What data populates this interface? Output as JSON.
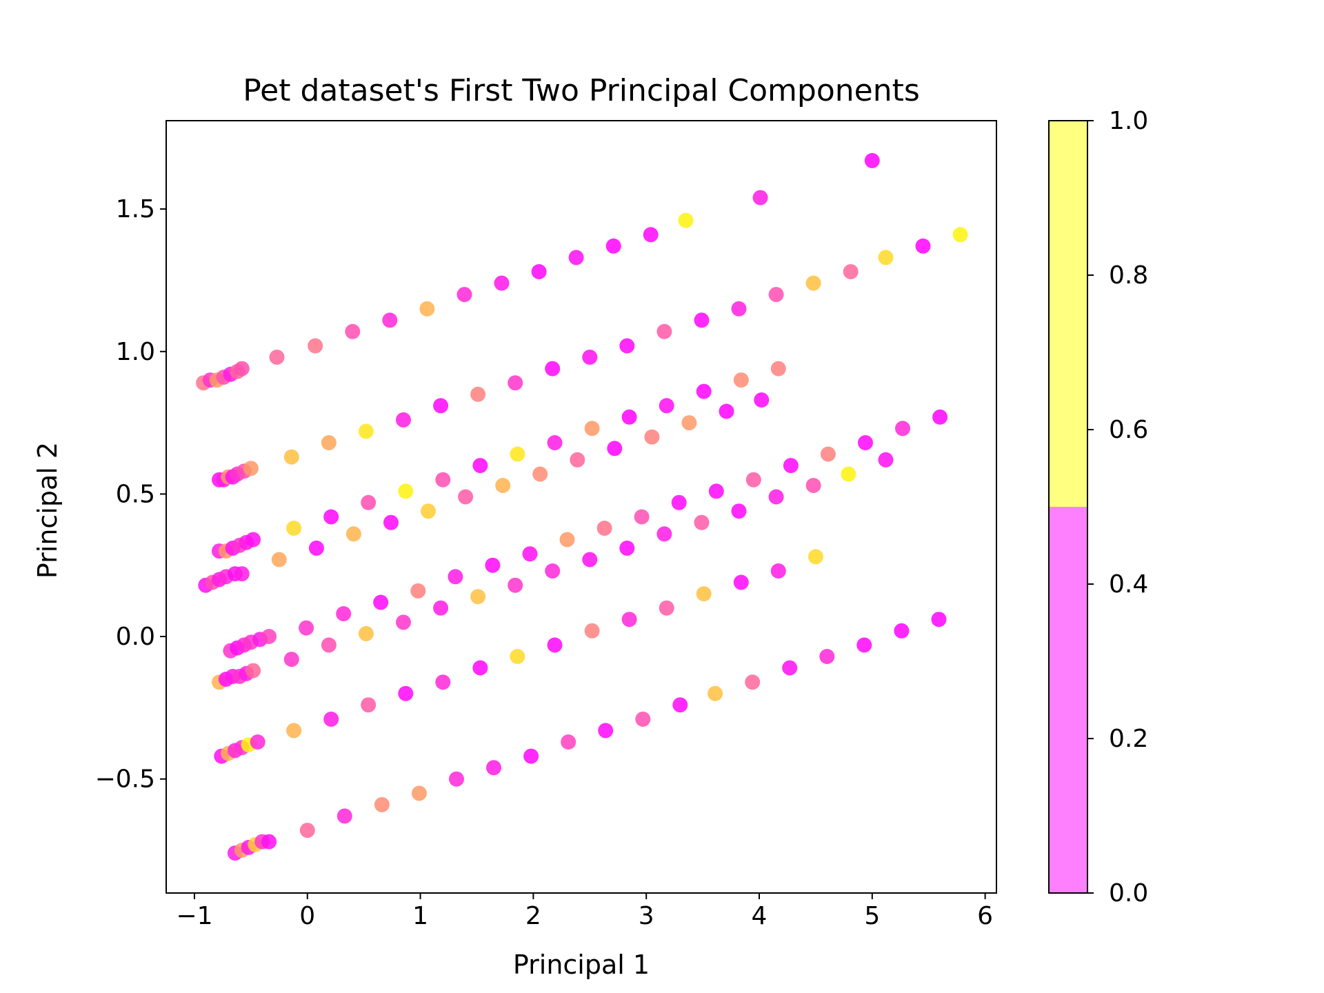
{
  "chart_data": {
    "type": "scatter",
    "title": "Pet dataset's First Two Principal Components",
    "xlabel": "Principal 1",
    "ylabel": "Principal 2",
    "xlim": [
      -1.25,
      6.1
    ],
    "ylim": [
      -0.9,
      1.81
    ],
    "xticks": [
      -1,
      0,
      1,
      2,
      3,
      4,
      5,
      6
    ],
    "xtick_labels": [
      "−1",
      "0",
      "1",
      "2",
      "3",
      "4",
      "5",
      "6"
    ],
    "yticks": [
      -0.5,
      0.0,
      0.5,
      1.0,
      1.5
    ],
    "ytick_labels": [
      "−0.5",
      "0.0",
      "0.5",
      "1.0",
      "1.5"
    ],
    "grid": false,
    "colormap": "spring (2-level)",
    "colorbar": {
      "range": [
        0.0,
        1.0
      ],
      "ticks": [
        0.0,
        0.2,
        0.4,
        0.6,
        0.8,
        1.0
      ],
      "tick_labels": [
        "0.0",
        "0.2",
        "0.4",
        "0.6",
        "0.8",
        "1.0"
      ],
      "segments": [
        {
          "from": 0.0,
          "to": 0.5,
          "color": "#ff80ff"
        },
        {
          "from": 0.5,
          "to": 1.0,
          "color": "#ffff80"
        }
      ]
    },
    "points": [
      {
        "x": -0.92,
        "y": 0.89,
        "c": 0.45
      },
      {
        "x": -0.86,
        "y": 0.9,
        "c": 0.2
      },
      {
        "x": -0.8,
        "y": 0.9,
        "c": 0.6
      },
      {
        "x": -0.74,
        "y": 0.91,
        "c": 0.3
      },
      {
        "x": -0.68,
        "y": 0.92,
        "c": 0.1
      },
      {
        "x": -0.62,
        "y": 0.93,
        "c": 0.4
      },
      {
        "x": -0.58,
        "y": 0.94,
        "c": 0.3
      },
      {
        "x": -0.27,
        "y": 0.98,
        "c": 0.4
      },
      {
        "x": 0.07,
        "y": 1.02,
        "c": 0.45
      },
      {
        "x": 0.4,
        "y": 1.07,
        "c": 0.3
      },
      {
        "x": 0.73,
        "y": 1.11,
        "c": 0.15
      },
      {
        "x": 1.06,
        "y": 1.15,
        "c": 0.7
      },
      {
        "x": 1.39,
        "y": 1.2,
        "c": 0.15
      },
      {
        "x": 1.72,
        "y": 1.24,
        "c": 0.08
      },
      {
        "x": 2.05,
        "y": 1.28,
        "c": 0.02
      },
      {
        "x": 2.38,
        "y": 1.33,
        "c": 0.05
      },
      {
        "x": 2.71,
        "y": 1.37,
        "c": 0.0
      },
      {
        "x": 3.04,
        "y": 1.41,
        "c": 0.02
      },
      {
        "x": 3.35,
        "y": 1.46,
        "c": 0.95
      },
      {
        "x": 4.01,
        "y": 1.54,
        "c": 0.1
      },
      {
        "x": 5.0,
        "y": 1.67,
        "c": 0.0
      },
      {
        "x": -0.78,
        "y": 0.55,
        "c": 0.05
      },
      {
        "x": -0.74,
        "y": 0.55,
        "c": 0.1
      },
      {
        "x": -0.7,
        "y": 0.56,
        "c": 0.6
      },
      {
        "x": -0.66,
        "y": 0.56,
        "c": 0.05
      },
      {
        "x": -0.62,
        "y": 0.57,
        "c": 0.2
      },
      {
        "x": -0.56,
        "y": 0.58,
        "c": 0.3
      },
      {
        "x": -0.5,
        "y": 0.59,
        "c": 0.6
      },
      {
        "x": -0.14,
        "y": 0.63,
        "c": 0.75
      },
      {
        "x": 0.19,
        "y": 0.68,
        "c": 0.65
      },
      {
        "x": 0.52,
        "y": 0.72,
        "c": 0.9
      },
      {
        "x": 0.85,
        "y": 0.76,
        "c": 0.1
      },
      {
        "x": 1.18,
        "y": 0.81,
        "c": 0.02
      },
      {
        "x": 1.51,
        "y": 0.85,
        "c": 0.5
      },
      {
        "x": 1.84,
        "y": 0.89,
        "c": 0.2
      },
      {
        "x": 2.17,
        "y": 0.94,
        "c": 0.02
      },
      {
        "x": 2.5,
        "y": 0.98,
        "c": 0.05
      },
      {
        "x": 2.83,
        "y": 1.02,
        "c": 0.02
      },
      {
        "x": 3.16,
        "y": 1.07,
        "c": 0.35
      },
      {
        "x": 3.49,
        "y": 1.11,
        "c": 0.02
      },
      {
        "x": 3.82,
        "y": 1.15,
        "c": 0.12
      },
      {
        "x": 4.15,
        "y": 1.2,
        "c": 0.3
      },
      {
        "x": 4.48,
        "y": 1.24,
        "c": 0.75
      },
      {
        "x": 4.81,
        "y": 1.28,
        "c": 0.4
      },
      {
        "x": 5.12,
        "y": 1.33,
        "c": 0.85
      },
      {
        "x": 5.45,
        "y": 1.37,
        "c": 0.0
      },
      {
        "x": 5.78,
        "y": 1.41,
        "c": 0.95
      },
      {
        "x": -0.78,
        "y": 0.3,
        "c": 0.1
      },
      {
        "x": -0.72,
        "y": 0.3,
        "c": 0.6
      },
      {
        "x": -0.66,
        "y": 0.31,
        "c": 0.05
      },
      {
        "x": -0.6,
        "y": 0.32,
        "c": 0.2
      },
      {
        "x": -0.54,
        "y": 0.33,
        "c": 0.1
      },
      {
        "x": -0.48,
        "y": 0.34,
        "c": 0.05
      },
      {
        "x": -0.12,
        "y": 0.38,
        "c": 0.85
      },
      {
        "x": 0.21,
        "y": 0.42,
        "c": 0.02
      },
      {
        "x": 0.54,
        "y": 0.47,
        "c": 0.3
      },
      {
        "x": 0.87,
        "y": 0.51,
        "c": 0.95
      },
      {
        "x": 1.2,
        "y": 0.55,
        "c": 0.3
      },
      {
        "x": 1.53,
        "y": 0.6,
        "c": 0.02
      },
      {
        "x": 1.86,
        "y": 0.64,
        "c": 0.9
      },
      {
        "x": 2.19,
        "y": 0.68,
        "c": 0.1
      },
      {
        "x": 2.52,
        "y": 0.73,
        "c": 0.6
      },
      {
        "x": 2.85,
        "y": 0.77,
        "c": 0.0
      },
      {
        "x": 3.18,
        "y": 0.81,
        "c": 0.05
      },
      {
        "x": 3.51,
        "y": 0.86,
        "c": 0.0
      },
      {
        "x": 3.84,
        "y": 0.9,
        "c": 0.55
      },
      {
        "x": 4.17,
        "y": 0.94,
        "c": 0.5
      },
      {
        "x": -0.9,
        "y": 0.18,
        "c": 0.05
      },
      {
        "x": -0.84,
        "y": 0.19,
        "c": 0.3
      },
      {
        "x": -0.78,
        "y": 0.2,
        "c": 0.1
      },
      {
        "x": -0.72,
        "y": 0.21,
        "c": 0.15
      },
      {
        "x": -0.64,
        "y": 0.22,
        "c": 0.05
      },
      {
        "x": -0.58,
        "y": 0.22,
        "c": 0.1
      },
      {
        "x": -0.25,
        "y": 0.27,
        "c": 0.65
      },
      {
        "x": 0.08,
        "y": 0.31,
        "c": 0.02
      },
      {
        "x": 0.41,
        "y": 0.36,
        "c": 0.7
      },
      {
        "x": 0.74,
        "y": 0.4,
        "c": 0.02
      },
      {
        "x": 1.07,
        "y": 0.44,
        "c": 0.8
      },
      {
        "x": 1.4,
        "y": 0.49,
        "c": 0.35
      },
      {
        "x": 1.73,
        "y": 0.53,
        "c": 0.7
      },
      {
        "x": 2.06,
        "y": 0.57,
        "c": 0.55
      },
      {
        "x": 2.39,
        "y": 0.62,
        "c": 0.4
      },
      {
        "x": 2.72,
        "y": 0.66,
        "c": 0.0
      },
      {
        "x": 3.05,
        "y": 0.7,
        "c": 0.5
      },
      {
        "x": 3.38,
        "y": 0.75,
        "c": 0.6
      },
      {
        "x": 3.71,
        "y": 0.79,
        "c": 0.0
      },
      {
        "x": 4.02,
        "y": 0.83,
        "c": 0.02
      },
      {
        "x": -0.68,
        "y": -0.05,
        "c": 0.2
      },
      {
        "x": -0.62,
        "y": -0.04,
        "c": 0.05
      },
      {
        "x": -0.56,
        "y": -0.03,
        "c": 0.15
      },
      {
        "x": -0.5,
        "y": -0.02,
        "c": 0.2
      },
      {
        "x": -0.42,
        "y": -0.01,
        "c": 0.1
      },
      {
        "x": -0.34,
        "y": 0.0,
        "c": 0.25
      },
      {
        "x": -0.01,
        "y": 0.03,
        "c": 0.2
      },
      {
        "x": 0.32,
        "y": 0.08,
        "c": 0.15
      },
      {
        "x": 0.65,
        "y": 0.12,
        "c": 0.02
      },
      {
        "x": 0.98,
        "y": 0.16,
        "c": 0.5
      },
      {
        "x": 1.31,
        "y": 0.21,
        "c": 0.1
      },
      {
        "x": 1.64,
        "y": 0.25,
        "c": 0.02
      },
      {
        "x": 1.97,
        "y": 0.29,
        "c": 0.05
      },
      {
        "x": 2.3,
        "y": 0.34,
        "c": 0.6
      },
      {
        "x": 2.63,
        "y": 0.38,
        "c": 0.45
      },
      {
        "x": 2.96,
        "y": 0.42,
        "c": 0.3
      },
      {
        "x": 3.29,
        "y": 0.47,
        "c": 0.02
      },
      {
        "x": 3.62,
        "y": 0.51,
        "c": 0.02
      },
      {
        "x": 3.95,
        "y": 0.55,
        "c": 0.35
      },
      {
        "x": 4.28,
        "y": 0.6,
        "c": 0.02
      },
      {
        "x": 4.61,
        "y": 0.64,
        "c": 0.5
      },
      {
        "x": 4.94,
        "y": 0.68,
        "c": 0.02
      },
      {
        "x": 5.27,
        "y": 0.73,
        "c": 0.15
      },
      {
        "x": 5.6,
        "y": 0.77,
        "c": 0.0
      },
      {
        "x": -0.78,
        "y": -0.16,
        "c": 0.7
      },
      {
        "x": -0.72,
        "y": -0.15,
        "c": 0.05
      },
      {
        "x": -0.66,
        "y": -0.14,
        "c": 0.1
      },
      {
        "x": -0.6,
        "y": -0.14,
        "c": 0.2
      },
      {
        "x": -0.54,
        "y": -0.13,
        "c": 0.1
      },
      {
        "x": -0.48,
        "y": -0.12,
        "c": 0.4
      },
      {
        "x": -0.14,
        "y": -0.08,
        "c": 0.2
      },
      {
        "x": 0.19,
        "y": -0.03,
        "c": 0.3
      },
      {
        "x": 0.52,
        "y": 0.01,
        "c": 0.75
      },
      {
        "x": 0.85,
        "y": 0.05,
        "c": 0.2
      },
      {
        "x": 1.18,
        "y": 0.1,
        "c": 0.1
      },
      {
        "x": 1.51,
        "y": 0.14,
        "c": 0.75
      },
      {
        "x": 1.84,
        "y": 0.18,
        "c": 0.2
      },
      {
        "x": 2.17,
        "y": 0.23,
        "c": 0.15
      },
      {
        "x": 2.5,
        "y": 0.27,
        "c": 0.05
      },
      {
        "x": 2.83,
        "y": 0.31,
        "c": 0.02
      },
      {
        "x": 3.16,
        "y": 0.36,
        "c": 0.1
      },
      {
        "x": 3.49,
        "y": 0.4,
        "c": 0.35
      },
      {
        "x": 3.82,
        "y": 0.44,
        "c": 0.02
      },
      {
        "x": 4.15,
        "y": 0.49,
        "c": 0.1
      },
      {
        "x": 4.48,
        "y": 0.53,
        "c": 0.3
      },
      {
        "x": 4.79,
        "y": 0.57,
        "c": 0.95
      },
      {
        "x": 5.12,
        "y": 0.62,
        "c": 0.05
      },
      {
        "x": -0.76,
        "y": -0.42,
        "c": 0.05
      },
      {
        "x": -0.7,
        "y": -0.41,
        "c": 0.7
      },
      {
        "x": -0.64,
        "y": -0.4,
        "c": 0.15
      },
      {
        "x": -0.58,
        "y": -0.39,
        "c": 0.2
      },
      {
        "x": -0.52,
        "y": -0.38,
        "c": 0.95
      },
      {
        "x": -0.44,
        "y": -0.37,
        "c": 0.15
      },
      {
        "x": -0.12,
        "y": -0.33,
        "c": 0.7
      },
      {
        "x": 0.21,
        "y": -0.29,
        "c": 0.1
      },
      {
        "x": 0.54,
        "y": -0.24,
        "c": 0.35
      },
      {
        "x": 0.87,
        "y": -0.2,
        "c": 0.02
      },
      {
        "x": 1.2,
        "y": -0.16,
        "c": 0.15
      },
      {
        "x": 1.53,
        "y": -0.11,
        "c": 0.02
      },
      {
        "x": 1.86,
        "y": -0.07,
        "c": 0.85
      },
      {
        "x": 2.19,
        "y": -0.03,
        "c": 0.02
      },
      {
        "x": 2.52,
        "y": 0.02,
        "c": 0.5
      },
      {
        "x": 2.85,
        "y": 0.06,
        "c": 0.15
      },
      {
        "x": 3.18,
        "y": 0.1,
        "c": 0.35
      },
      {
        "x": 3.51,
        "y": 0.15,
        "c": 0.75
      },
      {
        "x": 3.84,
        "y": 0.19,
        "c": 0.02
      },
      {
        "x": 4.17,
        "y": 0.23,
        "c": 0.1
      },
      {
        "x": 4.5,
        "y": 0.28,
        "c": 0.85
      },
      {
        "x": -0.64,
        "y": -0.76,
        "c": 0.1
      },
      {
        "x": -0.58,
        "y": -0.75,
        "c": 0.6
      },
      {
        "x": -0.52,
        "y": -0.74,
        "c": 0.1
      },
      {
        "x": -0.46,
        "y": -0.73,
        "c": 0.8
      },
      {
        "x": -0.4,
        "y": -0.72,
        "c": 0.2
      },
      {
        "x": -0.34,
        "y": -0.72,
        "c": 0.05
      },
      {
        "x": 0.0,
        "y": -0.68,
        "c": 0.4
      },
      {
        "x": 0.33,
        "y": -0.63,
        "c": 0.15
      },
      {
        "x": 0.66,
        "y": -0.59,
        "c": 0.55
      },
      {
        "x": 0.99,
        "y": -0.55,
        "c": 0.6
      },
      {
        "x": 1.32,
        "y": -0.5,
        "c": 0.15
      },
      {
        "x": 1.65,
        "y": -0.46,
        "c": 0.1
      },
      {
        "x": 1.98,
        "y": -0.42,
        "c": 0.02
      },
      {
        "x": 2.31,
        "y": -0.37,
        "c": 0.25
      },
      {
        "x": 2.64,
        "y": -0.33,
        "c": 0.02
      },
      {
        "x": 2.97,
        "y": -0.29,
        "c": 0.3
      },
      {
        "x": 3.3,
        "y": -0.24,
        "c": 0.02
      },
      {
        "x": 3.61,
        "y": -0.2,
        "c": 0.75
      },
      {
        "x": 3.94,
        "y": -0.16,
        "c": 0.4
      },
      {
        "x": 4.27,
        "y": -0.11,
        "c": 0.05
      },
      {
        "x": 4.6,
        "y": -0.07,
        "c": 0.15
      },
      {
        "x": 4.93,
        "y": -0.03,
        "c": 0.02
      },
      {
        "x": 5.26,
        "y": 0.02,
        "c": 0.0
      },
      {
        "x": 5.59,
        "y": 0.06,
        "c": 0.0
      }
    ]
  }
}
